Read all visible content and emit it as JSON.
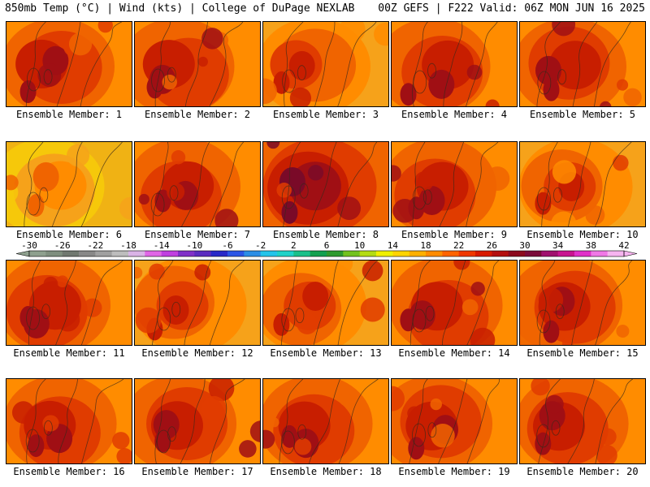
{
  "header": {
    "left": "850mb Temp (°C) | Wind (kts) | College of DuPage NEXLAB",
    "right": "00Z GEFS | F222 Valid: 06Z MON JUN 16 2025"
  },
  "panels": [
    {
      "label": "Ensemble Member: 1",
      "warm": 2
    },
    {
      "label": "Ensemble Member: 2",
      "warm": 2
    },
    {
      "label": "Ensemble Member: 3",
      "warm": 1
    },
    {
      "label": "Ensemble Member: 4",
      "warm": 2
    },
    {
      "label": "Ensemble Member: 5",
      "warm": 2
    },
    {
      "label": "Ensemble Member: 6",
      "warm": 0
    },
    {
      "label": "Ensemble Member: 7",
      "warm": 2
    },
    {
      "label": "Ensemble Member: 8",
      "warm": 3
    },
    {
      "label": "Ensemble Member: 9",
      "warm": 2
    },
    {
      "label": "Ensemble Member: 10",
      "warm": 1
    },
    {
      "label": "Ensemble Member: 11",
      "warm": 2
    },
    {
      "label": "Ensemble Member: 12",
      "warm": 1
    },
    {
      "label": "Ensemble Member: 13",
      "warm": 1
    },
    {
      "label": "Ensemble Member: 14",
      "warm": 2
    },
    {
      "label": "Ensemble Member: 15",
      "warm": 2
    },
    {
      "label": "Ensemble Member: 16",
      "warm": 2
    },
    {
      "label": "Ensemble Member: 17",
      "warm": 2
    },
    {
      "label": "Ensemble Member: 18",
      "warm": 2
    },
    {
      "label": "Ensemble Member: 19",
      "warm": 2
    },
    {
      "label": "Ensemble Member: 20",
      "warm": 2
    }
  ],
  "colorbar": {
    "labels": [
      "-30",
      "-26",
      "-22",
      "-18",
      "-14",
      "-10",
      "-6",
      "-2",
      "2",
      "6",
      "10",
      "14",
      "18",
      "22",
      "26",
      "30",
      "34",
      "38",
      "42"
    ],
    "colors": [
      "#8ea08e",
      "#7e8e7e",
      "#707870",
      "#888888",
      "#a0a0a0",
      "#bdbdbd",
      "#d9b3e6",
      "#e066e6",
      "#c040e0",
      "#8030c8",
      "#5a2cc0",
      "#2828c8",
      "#2b55e6",
      "#2b8de6",
      "#22c4ea",
      "#1ed2c8",
      "#19c08a",
      "#12a050",
      "#2e9a2e",
      "#72c21e",
      "#b4dc14",
      "#f0f000",
      "#ffd400",
      "#ffb000",
      "#ff8c00",
      "#ff6400",
      "#f03800",
      "#d81a00",
      "#b40f0f",
      "#8c0a1e",
      "#7a0a3a",
      "#a0106e",
      "#c81490",
      "#e030c8",
      "#f078e6",
      "#f6b4f0"
    ]
  }
}
